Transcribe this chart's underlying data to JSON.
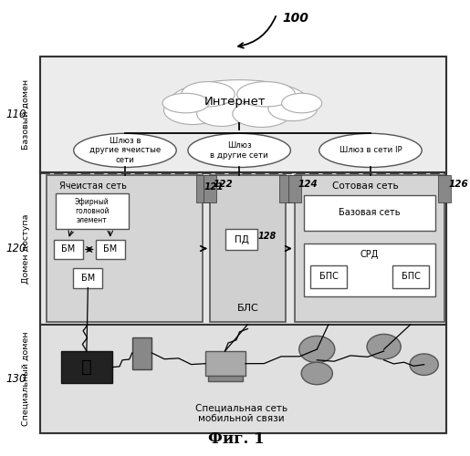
{
  "title": "Фиг. 1",
  "label_100": "100",
  "label_110": "110",
  "label_120": "120",
  "label_130": "130",
  "label_121": "121",
  "label_122": "122",
  "label_124": "124",
  "label_126": "126",
  "label_128": "128",
  "domain_base_label": "Базовый домен",
  "domain_access_label": "Домен доступа",
  "domain_special_label": "Специальный домен",
  "internet_label": "Интернет",
  "gateway1_label": "Шлюз в\nдругие ячеистые\nсети",
  "gateway2_label": "Шлюз\nв другие сети",
  "gateway3_label": "Шлюз в сети IP",
  "mesh_net_label": "Ячеистая сеть",
  "ether_head_label": "Эфирный\nголовной\nэлемент",
  "bm_label": "БМ",
  "bls_label": "БЛС",
  "pd_label": "ПД",
  "cellular_label": "Сотовая сеть",
  "core_net_label": "Базовая сеть",
  "srd_label": "СРД",
  "bps_label": "БПС",
  "special_net_label": "Специальная сеть\nмобильной связи",
  "bg_color": "#ffffff"
}
